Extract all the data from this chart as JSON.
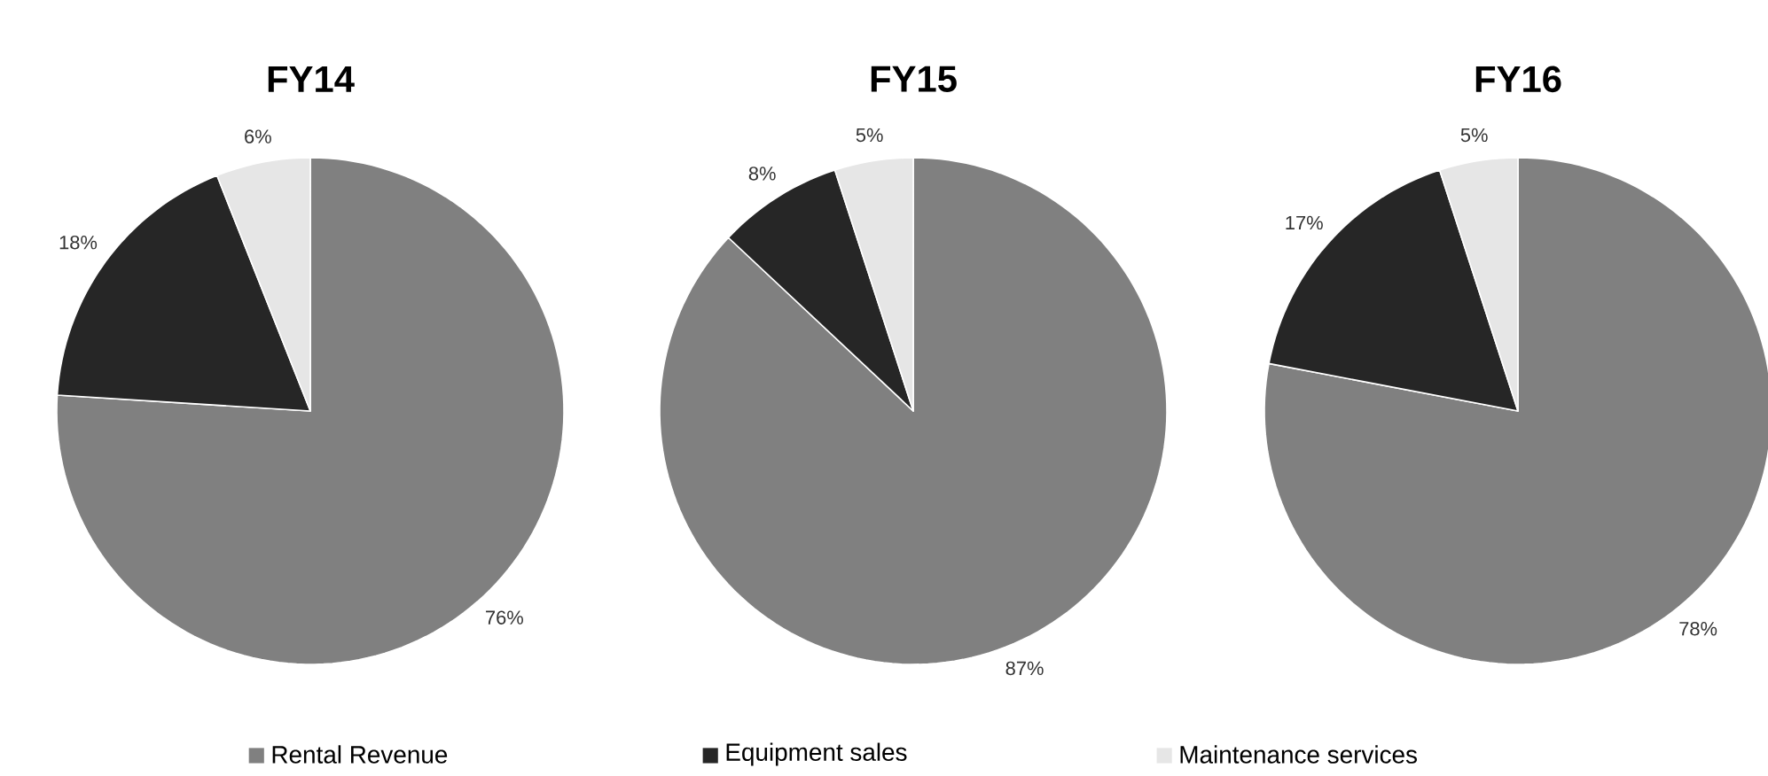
{
  "chart_data": [
    {
      "type": "pie",
      "title": "FY14",
      "values": [
        76,
        18,
        6
      ],
      "value_labels": [
        "76%",
        "18%",
        "6%"
      ],
      "colors": [
        "#808080",
        "#262626",
        "#e6e6e6"
      ]
    },
    {
      "type": "pie",
      "title": "FY15",
      "categories": [
        "Rental Revenue",
        "Equipment sales",
        "Maintenance services"
      ],
      "values": [
        87,
        8,
        5
      ],
      "value_labels": [
        "87%",
        "8%",
        "5%"
      ],
      "colors": [
        "#808080",
        "#262626",
        "#e6e6e6"
      ],
      "legend": "bottom"
    },
    {
      "type": "pie",
      "title": "FY16",
      "values": [
        78,
        17,
        5
      ],
      "value_labels": [
        "78%",
        "17%",
        "5%"
      ],
      "colors": [
        "#808080",
        "#262626",
        "#e6e6e6"
      ]
    }
  ]
}
